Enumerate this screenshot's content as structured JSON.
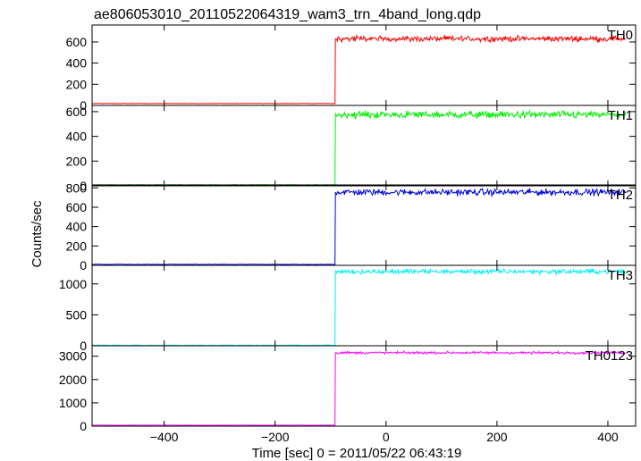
{
  "title": "ae806053010_20110522064319_wam3_trn_4band_long.qdp",
  "ylabel": "Counts/sec",
  "xlabel": "Time [sec] 0 = 2011/05/22 06:43:19",
  "chart_data": {
    "type": "line",
    "title": "ae806053010_20110522064319_wam3_trn_4band_long.qdp",
    "xlabel": "Time [sec] 0 = 2011/05/22 06:43:19",
    "ylabel": "Counts/sec",
    "xlim": [
      -530,
      450
    ],
    "x_ticks": [
      -400,
      -200,
      0,
      200,
      400
    ],
    "x_tick_labels": [
      "−400",
      "−200",
      "0",
      "200",
      "400"
    ],
    "step_time": -92,
    "panels": [
      {
        "name": "TH0",
        "color": "#ff0000",
        "ylim": [
          0,
          760
        ],
        "y_ticks": [
          0,
          200,
          400,
          600
        ],
        "y_tick_labels": [
          "0",
          "200",
          "400",
          "600"
        ],
        "before": 18,
        "after": 630,
        "noise": 20
      },
      {
        "name": "TH1",
        "color": "#00ee00",
        "ylim": [
          0,
          650
        ],
        "y_ticks": [
          0,
          200,
          400,
          600
        ],
        "y_tick_labels": [
          "0",
          "200",
          "400",
          "600"
        ],
        "before": 8,
        "after": 575,
        "noise": 22
      },
      {
        "name": "TH2",
        "color": "#0000dd",
        "ylim": [
          0,
          830
        ],
        "y_ticks": [
          0,
          200,
          400,
          600,
          800
        ],
        "y_tick_labels": [
          "0",
          "200",
          "400",
          "600",
          "800"
        ],
        "before": 10,
        "after": 755,
        "noise": 25
      },
      {
        "name": "TH3",
        "color": "#00eeee",
        "ylim": [
          0,
          1300
        ],
        "y_ticks": [
          0,
          500,
          1000
        ],
        "y_tick_labels": [
          "0",
          "500",
          "1000"
        ],
        "before": 8,
        "after": 1200,
        "noise": 30
      },
      {
        "name": "TH0123",
        "color": "#ff00ff",
        "ylim": [
          0,
          3450
        ],
        "y_ticks": [
          0,
          1000,
          2000,
          3000
        ],
        "y_tick_labels": [
          "0",
          "1000",
          "2000",
          "3000"
        ],
        "before": 40,
        "after": 3150,
        "noise": 40
      }
    ]
  }
}
